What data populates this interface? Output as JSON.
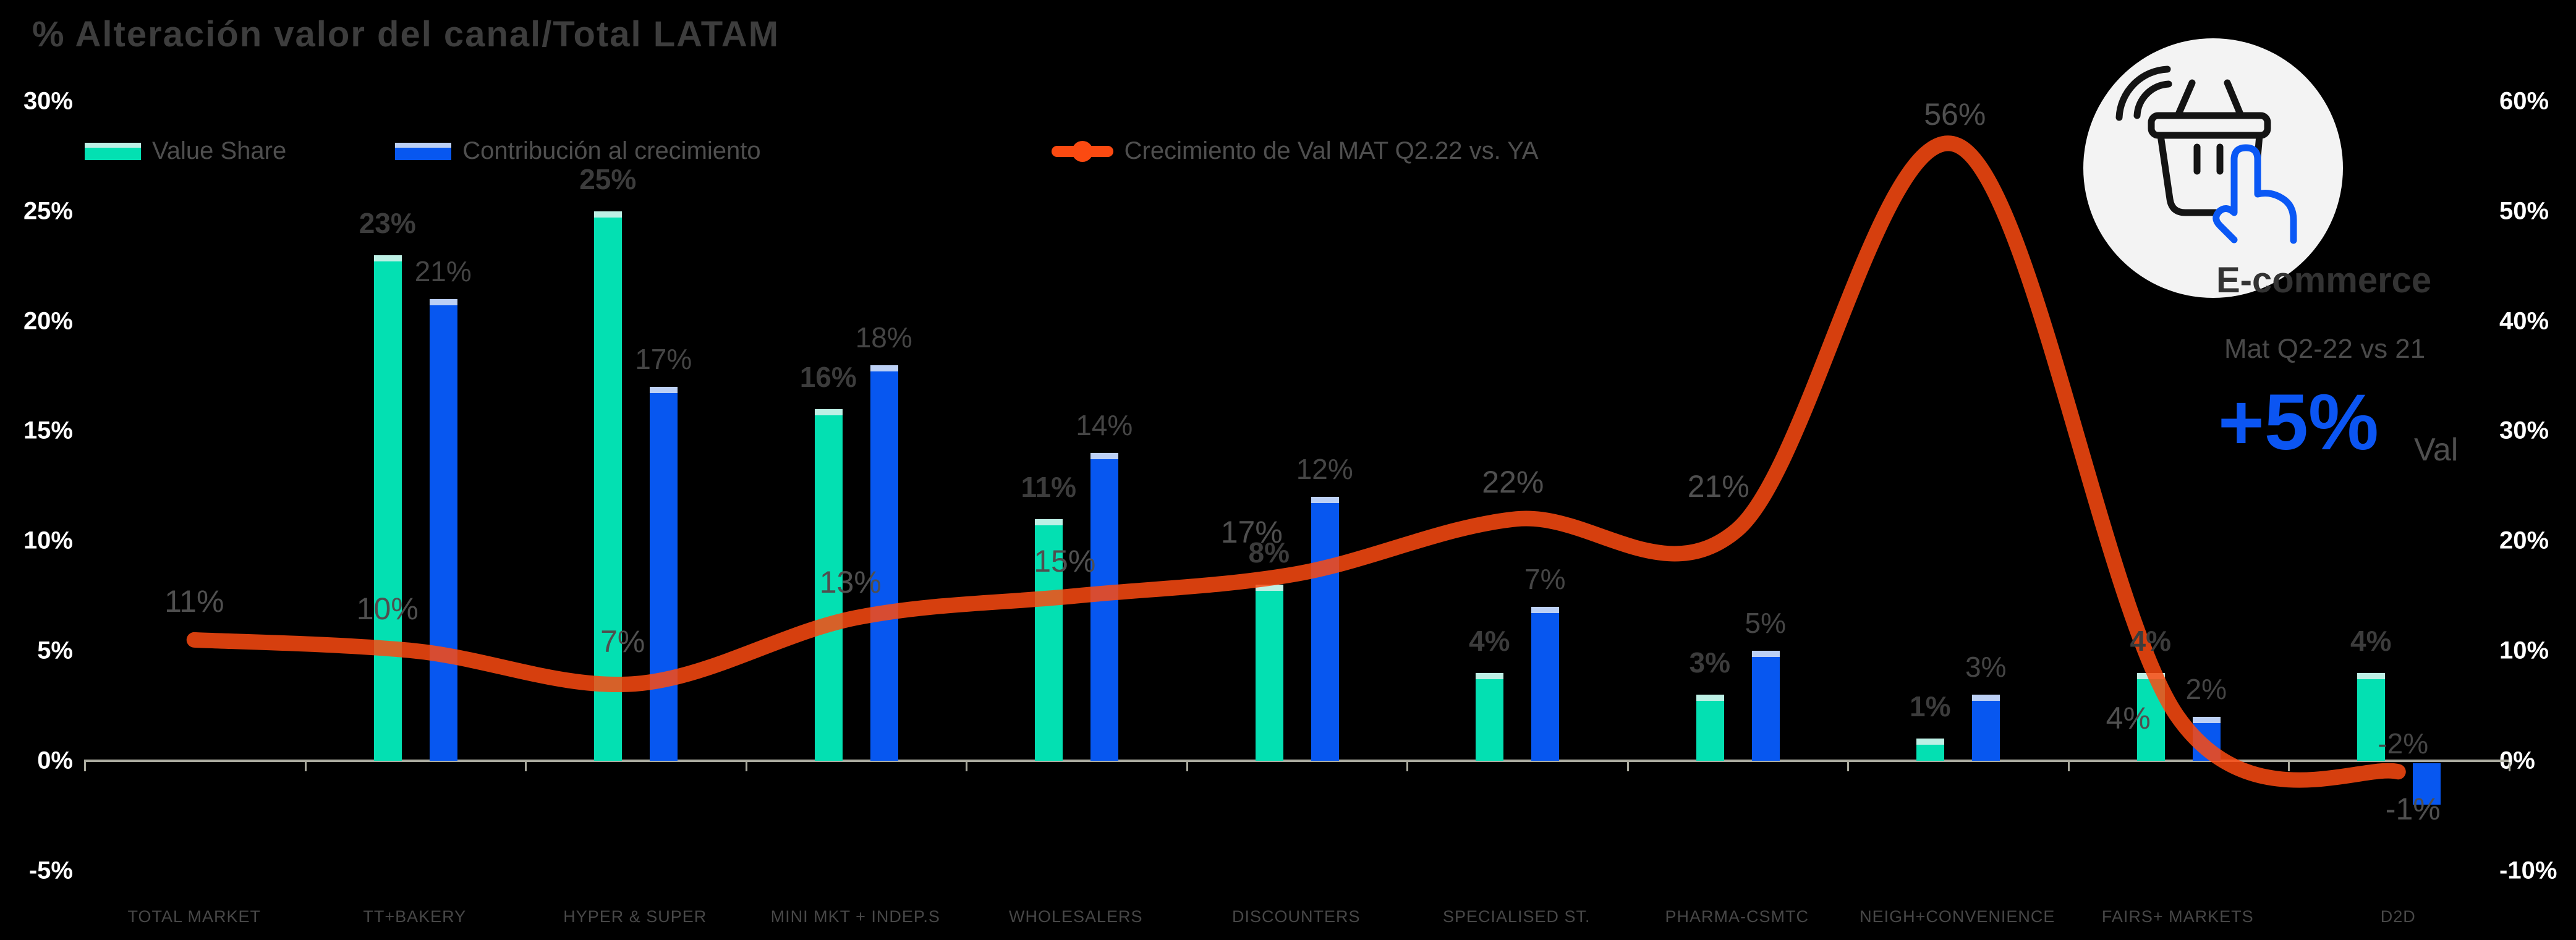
{
  "title": "% Alteración valor del canal/Total LATAM",
  "legend": {
    "items": [
      {
        "label": "Value Share",
        "color": "#03e0b2",
        "cap_color": "#bdf0e5",
        "marker": "bar"
      },
      {
        "label": "Contribución al crecimiento",
        "color": "#0757f0",
        "cap_color": "#bcd0f5",
        "marker": "bar"
      },
      {
        "label": "Crecimiento de Val MAT Q2.22 vs. YA",
        "color": "#fb4a11",
        "marker": "line"
      }
    ]
  },
  "badge": {
    "icon": "basket-click-icon",
    "title": "E-commerce",
    "subtitle": "Mat Q2-22 vs 21",
    "value": "+5%",
    "unit": "Val",
    "value_color": "#0b55f2",
    "circle_color": "#f3f3f3"
  },
  "colors": {
    "background": "#000000",
    "teal_bar": "#03e0b2",
    "teal_bar_cap": "#bdf0e5",
    "blue_bar": "#0757f0",
    "blue_bar_cap": "#bcd0f5",
    "orange_line": "#fb4a11",
    "axis_line": "#abab9f",
    "axis_text": "#ffffff",
    "label_text": "#454545"
  },
  "chart_data": {
    "type": "bar+line combo (dual axis)",
    "title": "% Alteración valor del canal/Total LATAM",
    "categories": [
      "TOTAL MARKET",
      "TT+BAKERY",
      "HYPER & SUPER",
      "MINI MKT + INDEP.S",
      "WHOLESALERS",
      "DISCOUNTERS",
      "SPECIALISED ST.",
      "PHARMA-CSMTC",
      "NEIGH+CONVENIENCE",
      "FAIRS+ MARKETS",
      "D2D"
    ],
    "series": [
      {
        "name": "Value Share",
        "type": "bar",
        "axis": "left",
        "color": "#03e0b2",
        "cap_color": "#bdf0e5",
        "values": [
          null,
          23,
          25,
          16,
          11,
          8,
          4,
          3,
          1,
          4,
          4
        ],
        "labels": [
          "",
          "23%",
          "25%",
          "16%",
          "11%",
          "8%",
          "4%",
          "3%",
          "1%",
          "4%",
          "4%"
        ]
      },
      {
        "name": "Contribución al crecimiento",
        "type": "bar",
        "axis": "left",
        "color": "#0757f0",
        "cap_color": "#bcd0f5",
        "values": [
          null,
          21,
          17,
          18,
          14,
          12,
          7,
          5,
          3,
          2,
          -2
        ],
        "labels": [
          "",
          "21%",
          "17%",
          "18%",
          "14%",
          "12%",
          "7%",
          "5%",
          "3%",
          "2%",
          "-2%"
        ]
      },
      {
        "name": "Crecimiento de Val MAT Q2.22 vs. YA",
        "type": "line",
        "axis": "right",
        "color": "#fb4a11",
        "values": [
          11,
          10,
          7,
          13,
          15,
          17,
          22,
          21,
          56,
          4,
          -1
        ],
        "labels": [
          "11%",
          "10%",
          "7%",
          "13%",
          "15%",
          "17%",
          "22%",
          "21%",
          "56%",
          "4%",
          "-1%"
        ],
        "label_offsets": [
          [
            0,
            -62
          ],
          [
            -44,
            -68
          ],
          [
            -20,
            -68
          ],
          [
            -8,
            -58
          ],
          [
            -18,
            -56
          ],
          [
            -72,
            -68
          ],
          [
            -6,
            -60
          ],
          [
            -30,
            -70
          ],
          [
            -4,
            -50
          ],
          [
            -80,
            2
          ],
          [
            24,
            60
          ]
        ]
      }
    ],
    "left_axis": {
      "unit": "%",
      "ticks": [
        30,
        25,
        20,
        15,
        10,
        5,
        0,
        -5
      ],
      "min": -5,
      "max": 30
    },
    "right_axis": {
      "unit": "%",
      "ticks": [
        60,
        50,
        40,
        30,
        20,
        10,
        0,
        -10
      ],
      "min": -10,
      "max": 60
    },
    "grid": false,
    "legend_position": "top-left"
  }
}
